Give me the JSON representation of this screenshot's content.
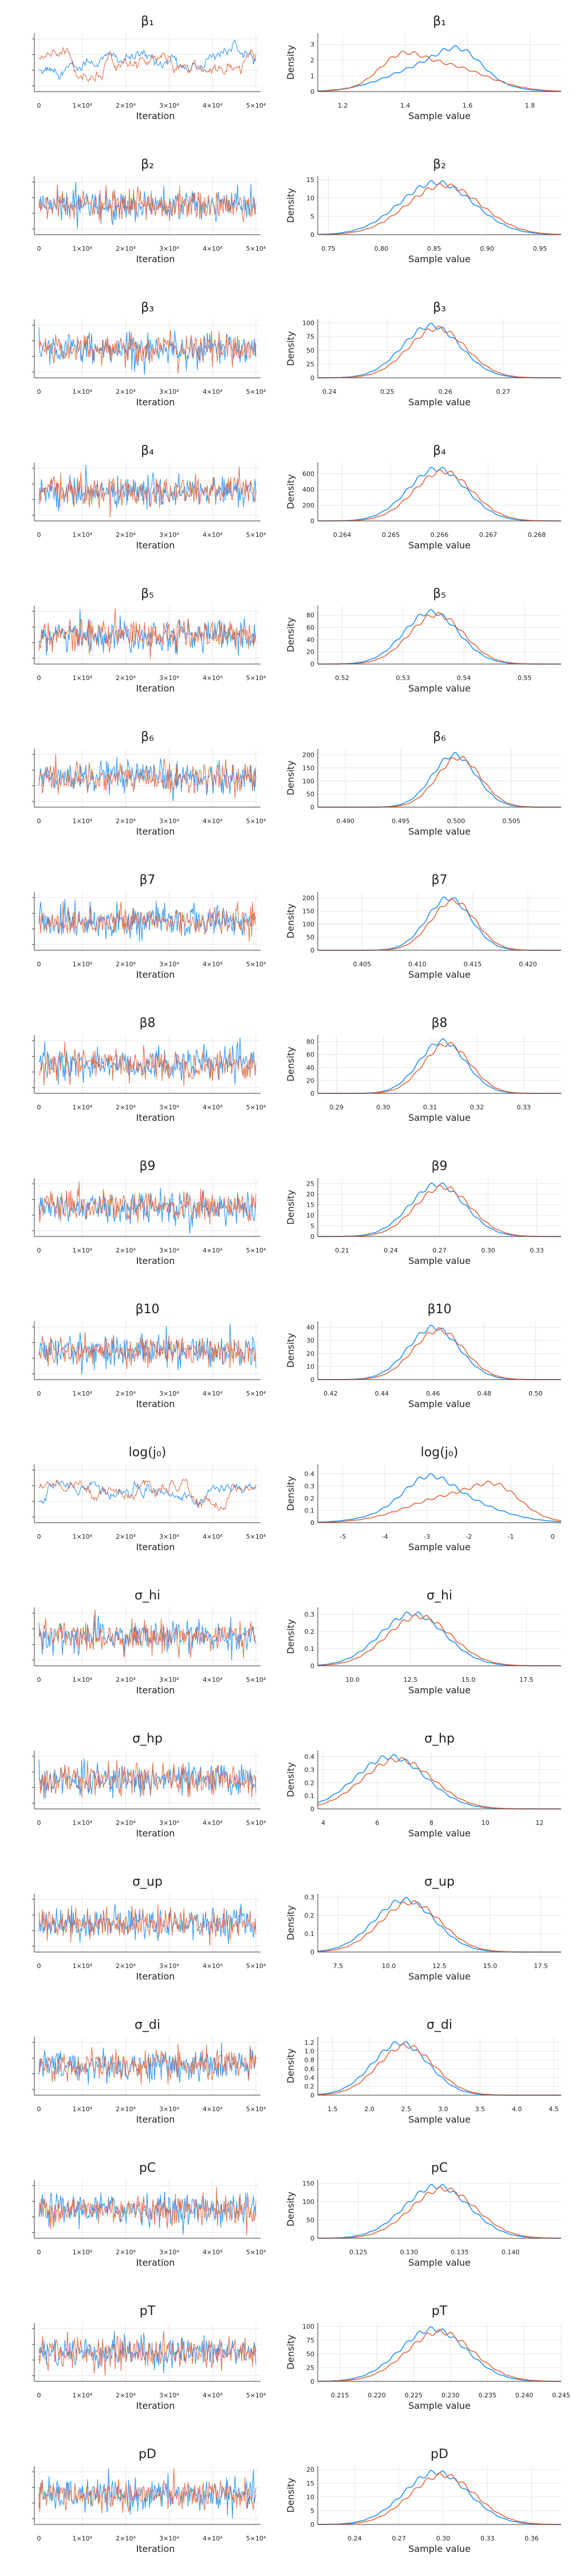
{
  "colors": {
    "chain1": "#1e90ff",
    "chain2": "#e2673f",
    "axis": "#333333",
    "grid": "#e6e6e6"
  },
  "chart_data": {
    "type": "line",
    "layout": "18 parameter rows x 2 panels (trace plot | density plot)",
    "chains": 2,
    "grid": true,
    "trace_xlabel": "Iteration",
    "trace_xticks": [
      "0",
      "1×10⁴",
      "2×10⁴",
      "3×10⁴",
      "4×10⁴",
      "5×10⁴"
    ],
    "trace_xlim": [
      0,
      50000
    ],
    "density_xlabel": "Sample value",
    "density_ylabel": "Density",
    "parameters": [
      {
        "title": "β₁",
        "mean": 1.5,
        "sd": 0.15,
        "pattern": "sticky",
        "density_xlim": [
          1.12,
          1.9
        ],
        "density_xticks": [
          "1.2",
          "1.4",
          "1.6",
          "1.8"
        ],
        "density_yticks": [
          "0",
          "1",
          "2",
          "3"
        ],
        "dens_ymax": 3.5,
        "mode_shift": [
          1.58,
          1.38
        ]
      },
      {
        "title": "β₂",
        "mean": 0.855,
        "sd": 0.035,
        "pattern": "mixed",
        "density_xlim": [
          0.74,
          0.97
        ],
        "density_xticks": [
          "0.75",
          "0.80",
          "0.85",
          "0.90",
          "0.95"
        ],
        "density_yticks": [
          "0",
          "5",
          "10",
          "15"
        ],
        "dens_ymax": 15
      },
      {
        "title": "β₃",
        "mean": 0.258,
        "sd": 0.005,
        "pattern": "mixed",
        "density_xlim": [
          0.238,
          0.28
        ],
        "density_xticks": [
          "0.24",
          "0.25",
          "0.26",
          "0.27"
        ],
        "density_yticks": [
          "0",
          "25",
          "50",
          "75",
          "100"
        ],
        "dens_ymax": 100
      },
      {
        "title": "β₄",
        "mean": 0.266,
        "sd": 0.0006,
        "pattern": "mixed",
        "density_xlim": [
          0.2635,
          0.2685
        ],
        "density_xticks": [
          "0.264",
          "0.265",
          "0.266",
          "0.267",
          "0.268"
        ],
        "density_yticks": [
          "0",
          "200",
          "400",
          "600"
        ],
        "dens_ymax": 700
      },
      {
        "title": "β₅",
        "mean": 0.535,
        "sd": 0.0045,
        "pattern": "mixed",
        "density_xlim": [
          0.516,
          0.556
        ],
        "density_xticks": [
          "0.52",
          "0.53",
          "0.54",
          "0.55"
        ],
        "density_yticks": [
          "0",
          "20",
          "40",
          "60",
          "80"
        ],
        "dens_ymax": 90
      },
      {
        "title": "β₆",
        "mean": 0.5,
        "sd": 0.002,
        "pattern": "mixed",
        "density_xlim": [
          0.4875,
          0.5095
        ],
        "density_xticks": [
          "0.490",
          "0.495",
          "0.500",
          "0.505"
        ],
        "density_yticks": [
          "0",
          "50",
          "100",
          "150",
          "200"
        ],
        "dens_ymax": 210
      },
      {
        "title": "β7",
        "mean": 0.413,
        "sd": 0.002,
        "pattern": "mixed",
        "density_xlim": [
          0.401,
          0.423
        ],
        "density_xticks": [
          "0.405",
          "0.410",
          "0.415",
          "0.420"
        ],
        "density_yticks": [
          "0",
          "50",
          "100",
          "150",
          "200"
        ],
        "dens_ymax": 210
      },
      {
        "title": "β8",
        "mean": 0.313,
        "sd": 0.005,
        "pattern": "mixed",
        "density_xlim": [
          0.286,
          0.338
        ],
        "density_xticks": [
          "0.29",
          "0.30",
          "0.31",
          "0.32",
          "0.33"
        ],
        "density_yticks": [
          "0",
          "20",
          "40",
          "60",
          "80"
        ],
        "dens_ymax": 85
      },
      {
        "title": "β9",
        "mean": 0.27,
        "sd": 0.017,
        "pattern": "mixed",
        "density_xlim": [
          0.195,
          0.345
        ],
        "density_xticks": [
          "0.21",
          "0.24",
          "0.27",
          "0.30",
          "0.33"
        ],
        "density_yticks": [
          "0",
          "5",
          "10",
          "15",
          "20",
          "25"
        ],
        "dens_ymax": 26
      },
      {
        "title": "β10",
        "mean": 0.461,
        "sd": 0.01,
        "pattern": "mixed",
        "density_xlim": [
          0.415,
          0.51
        ],
        "density_xticks": [
          "0.42",
          "0.44",
          "0.46",
          "0.48",
          "0.50"
        ],
        "density_yticks": [
          "0",
          "10",
          "20",
          "30",
          "40"
        ],
        "dens_ymax": 42
      },
      {
        "title": "log(j₀)",
        "mean": -2.5,
        "sd": 1.2,
        "pattern": "sticky",
        "density_xlim": [
          -5.6,
          0.2
        ],
        "density_xticks": [
          "-5",
          "-4",
          "-3",
          "-2",
          "-1",
          "0"
        ],
        "density_yticks": [
          "0",
          "0.1",
          "0.2",
          "0.3",
          "0.4"
        ],
        "dens_ymax": 0.45,
        "mode_shift": [
          -3.0,
          -1.3
        ]
      },
      {
        "title": "σ_hi",
        "mean": 12.7,
        "sd": 1.4,
        "pattern": "mixed",
        "density_xlim": [
          8.5,
          19.0
        ],
        "density_xticks": [
          "10.0",
          "12.5",
          "15.0",
          "17.5"
        ],
        "density_yticks": [
          "0",
          "0.1",
          "0.2",
          "0.3"
        ],
        "dens_ymax": 0.32
      },
      {
        "title": "σ_hp",
        "mean": 6.6,
        "sd": 1.3,
        "pattern": "mixed",
        "density_xlim": [
          3.8,
          12.8
        ],
        "density_xticks": [
          "4",
          "6",
          "8",
          "10",
          "12"
        ],
        "density_yticks": [
          "0",
          "0.1",
          "0.2",
          "0.3",
          "0.4"
        ],
        "dens_ymax": 0.42
      },
      {
        "title": "σ_up",
        "mean": 10.9,
        "sd": 1.5,
        "pattern": "mixed",
        "density_xlim": [
          6.5,
          18.5
        ],
        "density_xticks": [
          "7.5",
          "10.0",
          "12.5",
          "15.0",
          "17.5"
        ],
        "density_yticks": [
          "0",
          "0.1",
          "0.2",
          "0.3"
        ],
        "dens_ymax": 0.3
      },
      {
        "title": "σ_di",
        "mean": 2.45,
        "sd": 0.38,
        "pattern": "mixed",
        "density_xlim": [
          1.3,
          4.6
        ],
        "density_xticks": [
          "1.5",
          "2.0",
          "2.5",
          "3.0",
          "3.5",
          "4.0",
          "4.5"
        ],
        "density_yticks": [
          "0",
          "0.2",
          "0.4",
          "0.6",
          "0.8",
          "1.0",
          "1.2"
        ],
        "dens_ymax": 1.25
      },
      {
        "title": "pC",
        "mean": 0.133,
        "sd": 0.0032,
        "pattern": "mixed",
        "density_xlim": [
          0.121,
          0.145
        ],
        "density_xticks": [
          "0.125",
          "0.130",
          "0.135",
          "0.140"
        ],
        "density_yticks": [
          "0",
          "50",
          "100",
          "150"
        ],
        "dens_ymax": 150
      },
      {
        "title": "pT",
        "mean": 0.228,
        "sd": 0.0045,
        "pattern": "mixed",
        "density_xlim": [
          0.212,
          0.245
        ],
        "density_xticks": [
          "0.215",
          "0.220",
          "0.225",
          "0.230",
          "0.235",
          "0.240",
          "0.245"
        ],
        "density_yticks": [
          "0",
          "25",
          "50",
          "75",
          "100"
        ],
        "dens_ymax": 100
      },
      {
        "title": "pD",
        "mean": 0.297,
        "sd": 0.022,
        "pattern": "mixed",
        "density_xlim": [
          0.215,
          0.38
        ],
        "density_xticks": [
          "0.24",
          "0.27",
          "0.30",
          "0.33",
          "0.36"
        ],
        "density_yticks": [
          "0",
          "5",
          "10",
          "15",
          "20"
        ],
        "dens_ymax": 20
      }
    ]
  }
}
